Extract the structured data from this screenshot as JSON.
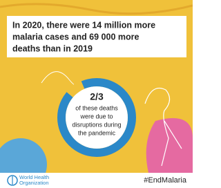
{
  "headline": [
    "In 2020, there were 14 million more",
    "malaria cases and 69 000 more",
    "deaths than in 2019"
  ],
  "center": {
    "fraction": "2/3",
    "lines": [
      "of these deaths",
      "were due to",
      "disruptions during",
      "the pandemic"
    ]
  },
  "footer": {
    "organization": [
      "World Health",
      "Organization"
    ],
    "hashtag": "#EndMalaria"
  }
}
